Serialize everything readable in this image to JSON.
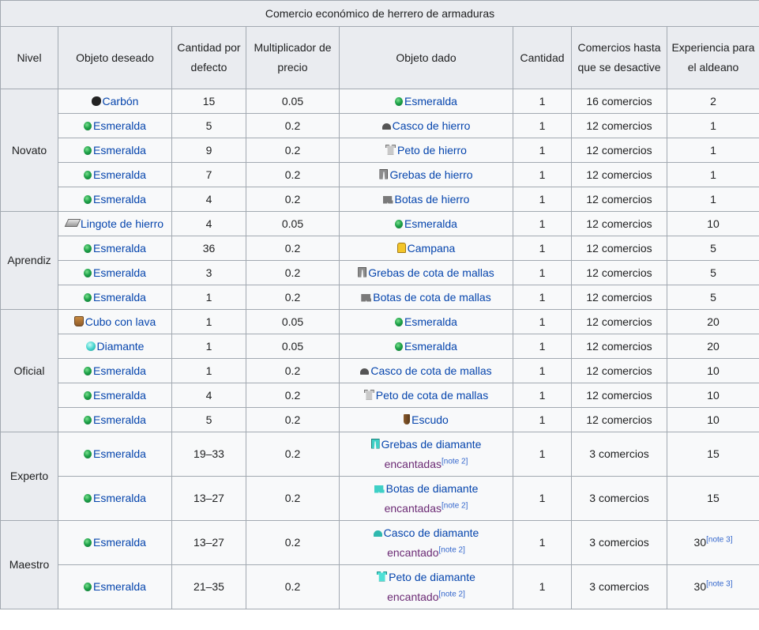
{
  "table": {
    "caption": "Comercio económico de herrero de armaduras",
    "headers": {
      "nivel": "Nivel",
      "objeto_deseado": "Objeto deseado",
      "cantidad_defecto": "Cantidad por defecto",
      "multiplicador": "Multiplicador de precio",
      "objeto_dado": "Objeto dado",
      "cantidad": "Cantidad",
      "comercios": "Comercios hasta que se desactive",
      "experiencia": "Experiencia para el aldeano"
    },
    "levels": [
      "Novato",
      "Aprendiz",
      "Oficial",
      "Experto",
      "Maestro"
    ],
    "rows": [
      {
        "want": "Carbón",
        "want_icon": "coal-icon",
        "qty": "15",
        "mult": "0.05",
        "give": "Esmeralda",
        "give2": "",
        "give_icon": "emerald-icon",
        "amount": "1",
        "trades": "16 comercios",
        "xp": "2",
        "note": ""
      },
      {
        "want": "Esmeralda",
        "want_icon": "emerald-icon",
        "qty": "5",
        "mult": "0.2",
        "give": "Casco de hierro",
        "give2": "",
        "give_icon": "iron-helmet-icon",
        "amount": "1",
        "trades": "12 comercios",
        "xp": "1",
        "note": ""
      },
      {
        "want": "Esmeralda",
        "want_icon": "emerald-icon",
        "qty": "9",
        "mult": "0.2",
        "give": "Peto de hierro",
        "give2": "",
        "give_icon": "iron-chestplate-icon",
        "amount": "1",
        "trades": "12 comercios",
        "xp": "1",
        "note": ""
      },
      {
        "want": "Esmeralda",
        "want_icon": "emerald-icon",
        "qty": "7",
        "mult": "0.2",
        "give": "Grebas de hierro",
        "give2": "",
        "give_icon": "iron-leggings-icon",
        "amount": "1",
        "trades": "12 comercios",
        "xp": "1",
        "note": ""
      },
      {
        "want": "Esmeralda",
        "want_icon": "emerald-icon",
        "qty": "4",
        "mult": "0.2",
        "give": "Botas de hierro",
        "give2": "",
        "give_icon": "iron-boots-icon",
        "amount": "1",
        "trades": "12 comercios",
        "xp": "1",
        "note": ""
      },
      {
        "want": "Lingote de hierro",
        "want_icon": "iron-ingot-icon",
        "qty": "4",
        "mult": "0.05",
        "give": "Esmeralda",
        "give2": "",
        "give_icon": "emerald-icon",
        "amount": "1",
        "trades": "12 comercios",
        "xp": "10",
        "note": ""
      },
      {
        "want": "Esmeralda",
        "want_icon": "emerald-icon",
        "qty": "36",
        "mult": "0.2",
        "give": "Campana",
        "give2": "",
        "give_icon": "bell-icon",
        "amount": "1",
        "trades": "12 comercios",
        "xp": "5",
        "note": ""
      },
      {
        "want": "Esmeralda",
        "want_icon": "emerald-icon",
        "qty": "3",
        "mult": "0.2",
        "give": "Grebas de cota de mallas",
        "give2": "",
        "give_icon": "chainmail-leggings-icon",
        "amount": "1",
        "trades": "12 comercios",
        "xp": "5",
        "note": ""
      },
      {
        "want": "Esmeralda",
        "want_icon": "emerald-icon",
        "qty": "1",
        "mult": "0.2",
        "give": "Botas de cota de mallas",
        "give2": "",
        "give_icon": "chainmail-boots-icon",
        "amount": "1",
        "trades": "12 comercios",
        "xp": "5",
        "note": ""
      },
      {
        "want": "Cubo con lava",
        "want_icon": "lava-bucket-icon",
        "qty": "1",
        "mult": "0.05",
        "give": "Esmeralda",
        "give2": "",
        "give_icon": "emerald-icon",
        "amount": "1",
        "trades": "12 comercios",
        "xp": "20",
        "note": ""
      },
      {
        "want": "Diamante",
        "want_icon": "diamond-icon",
        "qty": "1",
        "mult": "0.05",
        "give": "Esmeralda",
        "give2": "",
        "give_icon": "emerald-icon",
        "amount": "1",
        "trades": "12 comercios",
        "xp": "20",
        "note": ""
      },
      {
        "want": "Esmeralda",
        "want_icon": "emerald-icon",
        "qty": "1",
        "mult": "0.2",
        "give": "Casco de cota de mallas",
        "give2": "",
        "give_icon": "chainmail-helmet-icon",
        "amount": "1",
        "trades": "12 comercios",
        "xp": "10",
        "note": ""
      },
      {
        "want": "Esmeralda",
        "want_icon": "emerald-icon",
        "qty": "4",
        "mult": "0.2",
        "give": "Peto de cota de mallas",
        "give2": "",
        "give_icon": "chainmail-chestplate-icon",
        "amount": "1",
        "trades": "12 comercios",
        "xp": "10",
        "note": ""
      },
      {
        "want": "Esmeralda",
        "want_icon": "emerald-icon",
        "qty": "5",
        "mult": "0.2",
        "give": "Escudo",
        "give2": "",
        "give_icon": "shield-icon",
        "amount": "1",
        "trades": "12 comercios",
        "xp": "10",
        "note": ""
      },
      {
        "want": "Esmeralda",
        "want_icon": "emerald-icon",
        "qty": "19–33",
        "mult": "0.2",
        "give": "Grebas de diamante",
        "give2": "encantadas",
        "give_note": "[note 2]",
        "give_icon": "diamond-leggings-icon",
        "amount": "1",
        "trades": "3 comercios",
        "xp": "15",
        "note": ""
      },
      {
        "want": "Esmeralda",
        "want_icon": "emerald-icon",
        "qty": "13–27",
        "mult": "0.2",
        "give": "Botas de diamante",
        "give2": "encantadas",
        "give_note": "[note 2]",
        "give_icon": "diamond-boots-icon",
        "amount": "1",
        "trades": "3 comercios",
        "xp": "15",
        "note": ""
      },
      {
        "want": "Esmeralda",
        "want_icon": "emerald-icon",
        "qty": "13–27",
        "mult": "0.2",
        "give": "Casco de diamante",
        "give2": "encantado",
        "give_note": "[note 2]",
        "give_icon": "diamond-helmet-icon",
        "amount": "1",
        "trades": "3 comercios",
        "xp": "30",
        "note": "[note 3]"
      },
      {
        "want": "Esmeralda",
        "want_icon": "emerald-icon",
        "qty": "21–35",
        "mult": "0.2",
        "give": "Peto de diamante",
        "give2": "encantado",
        "give_note": "[note 2]",
        "give_icon": "diamond-chestplate-icon",
        "amount": "1",
        "trades": "3 comercios",
        "xp": "30",
        "note": "[note 3]"
      }
    ]
  }
}
